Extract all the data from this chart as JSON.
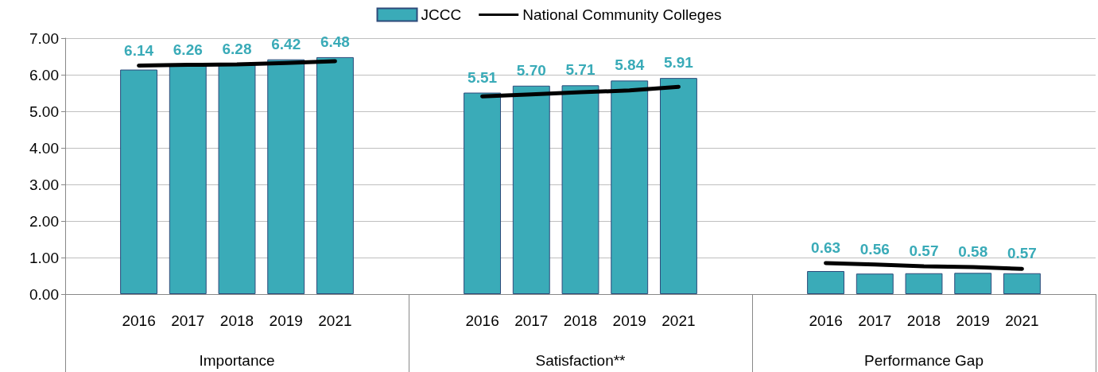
{
  "chart_data": {
    "type": "bar",
    "categories": [
      null,
      "2016",
      "2017",
      "2018",
      "2019",
      "2021",
      null,
      null,
      "2016",
      "2017",
      "2018",
      "2019",
      "2021",
      null,
      null,
      "2016",
      "2017",
      "2018",
      "2019",
      "2021",
      null
    ],
    "series": [
      {
        "name": "JCCC",
        "color": "#3aabb8",
        "values": [
          null,
          6.14,
          6.26,
          6.28,
          6.42,
          6.48,
          null,
          null,
          5.51,
          5.7,
          5.71,
          5.84,
          5.91,
          null,
          null,
          0.63,
          0.56,
          0.57,
          0.58,
          0.57,
          null
        ],
        "value_labels": [
          null,
          "6.14",
          "6.26",
          "6.28",
          "6.42",
          "6.48",
          null,
          null,
          "5.51",
          "5.70",
          "5.71",
          "5.84",
          "5.91",
          null,
          null,
          "0.63",
          "0.56",
          "0.57",
          "0.58",
          "0.57",
          null
        ]
      },
      {
        "name": "National Community Colleges",
        "type": "line",
        "color": "#000000",
        "values": [
          null,
          6.25,
          6.27,
          6.28,
          6.32,
          6.37,
          null,
          null,
          5.41,
          5.46,
          5.52,
          5.57,
          5.67,
          null,
          null,
          0.85,
          0.81,
          0.76,
          0.74,
          0.69,
          null
        ]
      }
    ],
    "annotations": [
      "Importance",
      "Satisfaction**",
      "Performance Gap"
    ],
    "ylim": [
      0,
      7
    ],
    "yticks": [
      {
        "value": 0,
        "label": "0.00"
      },
      {
        "value": 1,
        "label": "1.00"
      },
      {
        "value": 2,
        "label": "2.00"
      },
      {
        "value": 3,
        "label": "3.00"
      },
      {
        "value": 4,
        "label": "4.00"
      },
      {
        "value": 5,
        "label": "5.00"
      },
      {
        "value": 6,
        "label": "6.00"
      },
      {
        "value": 7,
        "label": "7.00"
      }
    ],
    "grid": "y",
    "legend": "top",
    "marker": "none"
  }
}
